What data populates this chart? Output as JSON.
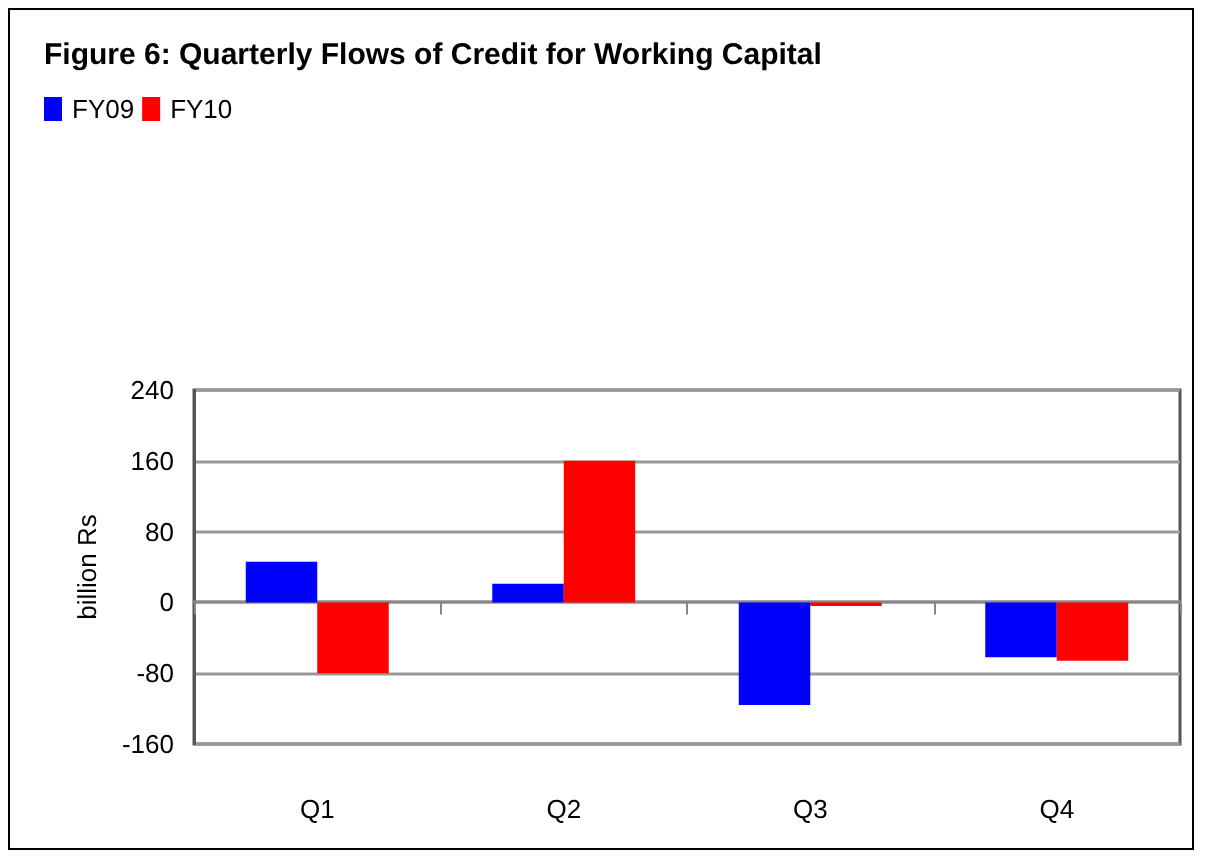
{
  "chart_data": {
    "type": "bar",
    "title": "Figure 6: Quarterly Flows of Credit for Working Capital",
    "ylabel": "billion Rs",
    "categories": [
      "Q1",
      "Q2",
      "Q3",
      "Q4"
    ],
    "series": [
      {
        "name": "FY09",
        "color": "#0000ff",
        "values": [
          46,
          21,
          -116,
          -62
        ]
      },
      {
        "name": "FY10",
        "color": "#ff0000",
        "values": [
          -80,
          160,
          -4,
          -66
        ]
      }
    ],
    "ylim": [
      -160,
      240
    ],
    "yticks": [
      -160,
      -80,
      0,
      80,
      160,
      240
    ],
    "grid": "y",
    "legend": "top left"
  }
}
